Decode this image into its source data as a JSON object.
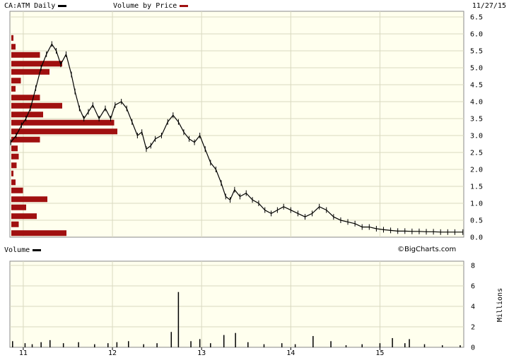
{
  "header": {
    "ticker_legend": "CA:ATM Daily",
    "vbp_legend": "Volume by Price",
    "date": "11/27/15"
  },
  "volume_panel": {
    "legend": "Volume",
    "units_label": "Millions"
  },
  "watermark": "©BigCharts.com",
  "colors": {
    "panel_bg": "#ffffee",
    "grid": "#d9d9c0",
    "price": "#000000",
    "vbp_bar": "#a01010",
    "frame": "#888888"
  },
  "chart_data": [
    {
      "type": "line",
      "name": "price",
      "title": "CA:ATM Daily",
      "x_ticks": [
        11,
        12,
        13,
        14,
        15
      ],
      "y_ticks": [
        "0.0",
        "0.5",
        "1.0",
        "1.5",
        "2.0",
        "2.5",
        "3.0",
        "3.5",
        "4.0",
        "4.5",
        "5.0",
        "5.5",
        "6.0",
        "6.5"
      ],
      "ylim": [
        0,
        6.5
      ],
      "xlim": [
        10.85,
        15.94
      ],
      "grid": true,
      "x": [
        10.86,
        10.92,
        10.98,
        11.03,
        11.08,
        11.14,
        11.2,
        11.26,
        11.32,
        11.37,
        11.42,
        11.48,
        11.54,
        11.58,
        11.63,
        11.68,
        11.73,
        11.78,
        11.85,
        11.92,
        11.98,
        12.03,
        12.1,
        12.16,
        12.22,
        12.28,
        12.33,
        12.38,
        12.43,
        12.48,
        12.55,
        12.62,
        12.68,
        12.74,
        12.8,
        12.86,
        12.92,
        12.98,
        13.04,
        13.1,
        13.16,
        13.22,
        13.27,
        13.32,
        13.37,
        13.43,
        13.5,
        13.57,
        13.64,
        13.71,
        13.78,
        13.85,
        13.92,
        14.0,
        14.08,
        14.16,
        14.24,
        14.32,
        14.4,
        14.48,
        14.56,
        14.64,
        14.72,
        14.8,
        14.88,
        14.96,
        15.04,
        15.12,
        15.2,
        15.28,
        15.36,
        15.44,
        15.52,
        15.6,
        15.68,
        15.76,
        15.84,
        15.93
      ],
      "y": [
        2.8,
        3.0,
        3.3,
        3.5,
        3.8,
        4.4,
        5.0,
        5.4,
        5.7,
        5.5,
        5.1,
        5.4,
        4.8,
        4.3,
        3.8,
        3.5,
        3.7,
        3.9,
        3.5,
        3.8,
        3.5,
        3.9,
        4.0,
        3.8,
        3.4,
        3.0,
        3.1,
        2.6,
        2.7,
        2.9,
        3.0,
        3.4,
        3.6,
        3.4,
        3.1,
        2.9,
        2.8,
        3.0,
        2.6,
        2.2,
        2.0,
        1.6,
        1.2,
        1.1,
        1.4,
        1.2,
        1.3,
        1.1,
        1.0,
        0.8,
        0.7,
        0.8,
        0.9,
        0.8,
        0.7,
        0.6,
        0.7,
        0.9,
        0.8,
        0.6,
        0.5,
        0.45,
        0.4,
        0.3,
        0.3,
        0.25,
        0.22,
        0.2,
        0.18,
        0.18,
        0.17,
        0.17,
        0.16,
        0.16,
        0.15,
        0.15,
        0.15,
        0.15
      ]
    },
    {
      "type": "bar",
      "name": "Volume by Price",
      "orientation": "horizontal",
      "price_levels": [
        0.12,
        0.38,
        0.62,
        0.88,
        1.12,
        1.38,
        1.62,
        1.88,
        2.12,
        2.38,
        2.62,
        2.88,
        3.12,
        3.38,
        3.62,
        3.88,
        4.12,
        4.38,
        4.62,
        4.88,
        5.12,
        5.38,
        5.62,
        5.88
      ],
      "relative_volume": [
        0.52,
        0.07,
        0.24,
        0.14,
        0.34,
        0.11,
        0.04,
        0.02,
        0.05,
        0.07,
        0.06,
        0.27,
        1.0,
        0.97,
        0.3,
        0.48,
        0.27,
        0.04,
        0.09,
        0.36,
        0.48,
        0.27,
        0.04,
        0.02
      ]
    },
    {
      "type": "bar",
      "name": "Volume",
      "units": "Millions",
      "ylim": [
        0,
        8
      ],
      "y_ticks": [
        "0",
        "2",
        "4",
        "6",
        "8"
      ],
      "x": [
        10.88,
        11.02,
        11.1,
        11.2,
        11.3,
        11.45,
        11.62,
        11.8,
        11.95,
        12.05,
        12.18,
        12.35,
        12.5,
        12.66,
        12.74,
        12.88,
        12.98,
        13.1,
        13.25,
        13.38,
        13.52,
        13.7,
        13.9,
        14.05,
        14.25,
        14.45,
        14.62,
        14.8,
        15.0,
        15.14,
        15.28,
        15.33,
        15.5,
        15.7,
        15.9
      ],
      "values": [
        0.6,
        0.4,
        0.3,
        0.5,
        0.7,
        0.4,
        0.5,
        0.3,
        0.4,
        0.5,
        0.6,
        0.3,
        0.4,
        1.5,
        5.4,
        0.6,
        0.8,
        0.4,
        1.2,
        1.4,
        0.5,
        0.3,
        0.4,
        0.3,
        1.1,
        0.6,
        0.2,
        0.3,
        0.4,
        0.9,
        0.4,
        0.8,
        0.3,
        0.2,
        0.2
      ]
    }
  ]
}
